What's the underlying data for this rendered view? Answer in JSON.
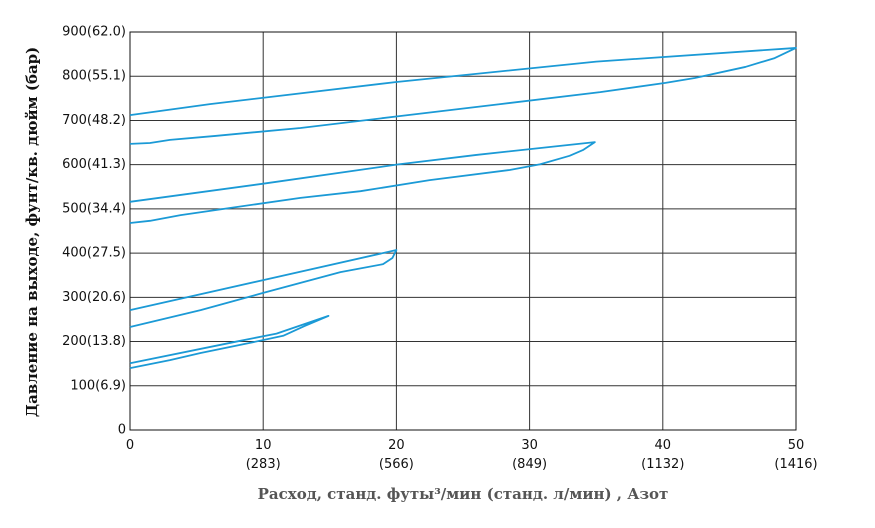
{
  "chart_data": {
    "type": "line",
    "x_label": "Расход, станд. футы³/мин (станд. л/мин) , Азот",
    "y_label": "Давление на выходе, фунт/кв. дюйм (бар)",
    "xlim": [
      0,
      50
    ],
    "ylim": [
      0,
      900
    ],
    "grid": true,
    "xticks": [
      0,
      {
        "value": 10,
        "label": "10\n(283)"
      },
      {
        "value": 20,
        "label": "20\n(566)"
      },
      {
        "value": 30,
        "label": "30\n(849)"
      },
      {
        "value": 40,
        "label": "40\n(1132)"
      },
      {
        "value": 50,
        "label": "50\n(1416)"
      }
    ],
    "yticks": [
      0,
      {
        "value": 100,
        "label": "100(6.9)"
      },
      {
        "value": 200,
        "label": "200(13.8)"
      },
      {
        "value": 300,
        "label": "300(20.6)"
      },
      {
        "value": 400,
        "label": "400(27.5)"
      },
      {
        "value": 500,
        "label": "500(34.4)"
      },
      {
        "value": 600,
        "label": "600(41.3)"
      },
      {
        "value": 700,
        "label": "700(48.2)"
      },
      {
        "value": 800,
        "label": "800(55.1)"
      },
      {
        "value": 900,
        "label": "900(62.0)"
      }
    ],
    "series": [
      {
        "color": "#1b9ad6",
        "x": [
          0,
          6,
          20,
          35,
          50,
          48.4,
          46.2,
          42.4,
          40.2,
          35.3,
          27.8,
          20.3,
          12.8,
          6.4,
          3.0,
          1.5,
          0
        ],
        "values": [
          712,
          737,
          787,
          833,
          864,
          841,
          821,
          796,
          785,
          764,
          737,
          710,
          683,
          665,
          656,
          649,
          647
        ]
      },
      {
        "color": "#1b9ad6",
        "x": [
          0,
          10,
          20,
          26,
          34.9,
          34,
          33,
          30.8,
          28.5,
          22.5,
          17.3,
          12.8,
          7.5,
          3.8,
          1.5,
          0
        ],
        "values": [
          516,
          557,
          600,
          622,
          651,
          633,
          620,
          601,
          588,
          565,
          540,
          525,
          502,
          486,
          473,
          468
        ]
      },
      {
        "color": "#1b9ad6",
        "x": [
          0,
          10,
          20,
          19.7,
          19,
          15.8,
          10,
          5.3,
          0
        ],
        "values": [
          271,
          339,
          407,
          389,
          375,
          357,
          310,
          271,
          233
        ]
      },
      {
        "color": "#1b9ad6",
        "x": [
          0,
          8,
          11,
          14.9,
          13.1,
          11.5,
          9,
          5.3,
          3,
          0
        ],
        "values": [
          151,
          200,
          218,
          258,
          235,
          213,
          197,
          174,
          158,
          140
        ]
      }
    ]
  }
}
